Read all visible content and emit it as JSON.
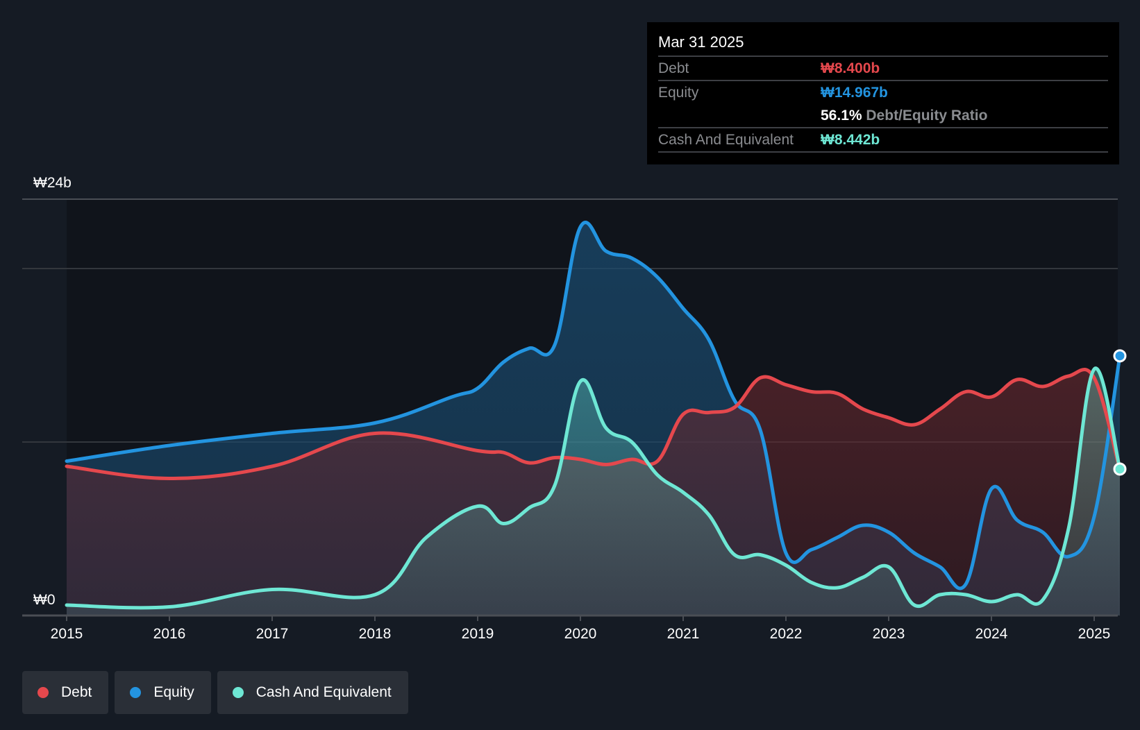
{
  "tooltip": {
    "date": "Mar 31 2025",
    "rows": [
      {
        "label": "Debt",
        "value": "₩8.400b",
        "color": "#e5484d"
      },
      {
        "label": "Equity",
        "value": "₩14.967b",
        "color": "#2394e0"
      },
      {
        "ratio_value": "56.1%",
        "ratio_label": "Debt/Equity Ratio"
      },
      {
        "label": "Cash And Equivalent",
        "value": "₩8.442b",
        "color": "#6ee7d4"
      }
    ]
  },
  "legend": [
    {
      "label": "Debt",
      "color": "#e5484d"
    },
    {
      "label": "Equity",
      "color": "#2394e0"
    },
    {
      "label": "Cash And Equivalent",
      "color": "#6ee7d4"
    }
  ],
  "chart_data": {
    "type": "area",
    "title": "",
    "xlabel": "",
    "ylabel": "",
    "y_unit_prefix": "₩",
    "ylim": [
      0,
      24
    ],
    "xlim": [
      2014.6,
      2025.25
    ],
    "y_tick_labels": [
      {
        "value": 24,
        "label": "₩24b"
      },
      {
        "value": 0,
        "label": "₩0"
      }
    ],
    "gridlines": [
      24,
      20,
      10
    ],
    "x_ticks": [
      2015,
      2016,
      2017,
      2018,
      2019,
      2020,
      2021,
      2022,
      2023,
      2024,
      2025
    ],
    "x_tick_labels": [
      "2015",
      "2016",
      "2017",
      "2018",
      "2019",
      "2020",
      "2021",
      "2022",
      "2023",
      "2024",
      "2025"
    ],
    "legend_position": "bottom-left",
    "series": [
      {
        "name": "Equity",
        "color": "#2394e0",
        "x": [
          2015,
          2016,
          2017,
          2018,
          2018.75,
          2019,
          2019.25,
          2019.5,
          2019.75,
          2020,
          2020.25,
          2020.5,
          2020.75,
          2021,
          2021.25,
          2021.5,
          2021.75,
          2022,
          2022.25,
          2022.5,
          2022.75,
          2023,
          2023.25,
          2023.5,
          2023.75,
          2024,
          2024.25,
          2024.5,
          2024.75,
          2025,
          2025.25
        ],
        "values": [
          8.9,
          9.8,
          10.5,
          11.1,
          12.6,
          13.1,
          14.6,
          15.4,
          15.6,
          22.4,
          21.0,
          20.6,
          19.5,
          17.7,
          15.9,
          12.4,
          10.7,
          3.6,
          3.8,
          4.5,
          5.2,
          4.8,
          3.6,
          2.8,
          1.8,
          7.3,
          5.5,
          4.8,
          3.4,
          5.7,
          14.967
        ]
      },
      {
        "name": "Debt",
        "color": "#e5484d",
        "x": [
          2015,
          2016,
          2017,
          2018,
          2019,
          2019.25,
          2019.5,
          2019.75,
          2020,
          2020.25,
          2020.5,
          2020.75,
          2021,
          2021.25,
          2021.5,
          2021.75,
          2022,
          2022.25,
          2022.5,
          2022.75,
          2023,
          2023.25,
          2023.5,
          2023.75,
          2024,
          2024.25,
          2024.5,
          2024.75,
          2025,
          2025.25
        ],
        "values": [
          8.6,
          7.9,
          8.6,
          10.5,
          9.5,
          9.4,
          8.8,
          9.1,
          9.0,
          8.7,
          9.0,
          8.9,
          11.6,
          11.7,
          12.0,
          13.7,
          13.3,
          12.9,
          12.8,
          11.9,
          11.4,
          11.0,
          11.9,
          12.9,
          12.6,
          13.6,
          13.2,
          13.8,
          13.7,
          8.4
        ]
      },
      {
        "name": "Cash And Equivalent",
        "color": "#6ee7d4",
        "x": [
          2015,
          2016,
          2017,
          2018,
          2018.5,
          2019,
          2019.25,
          2019.5,
          2019.75,
          2020,
          2020.25,
          2020.5,
          2020.75,
          2021,
          2021.25,
          2021.5,
          2021.75,
          2022,
          2022.25,
          2022.5,
          2022.75,
          2023,
          2023.25,
          2023.5,
          2023.75,
          2024,
          2024.25,
          2024.5,
          2024.75,
          2025,
          2025.25
        ],
        "values": [
          0.6,
          0.5,
          1.5,
          1.2,
          4.5,
          6.3,
          5.3,
          6.2,
          7.5,
          13.5,
          10.8,
          10.0,
          8.1,
          7.1,
          5.8,
          3.5,
          3.5,
          2.9,
          1.9,
          1.6,
          2.2,
          2.8,
          0.6,
          1.2,
          1.2,
          0.8,
          1.2,
          0.9,
          5.0,
          14.2,
          8.442
        ]
      }
    ]
  }
}
